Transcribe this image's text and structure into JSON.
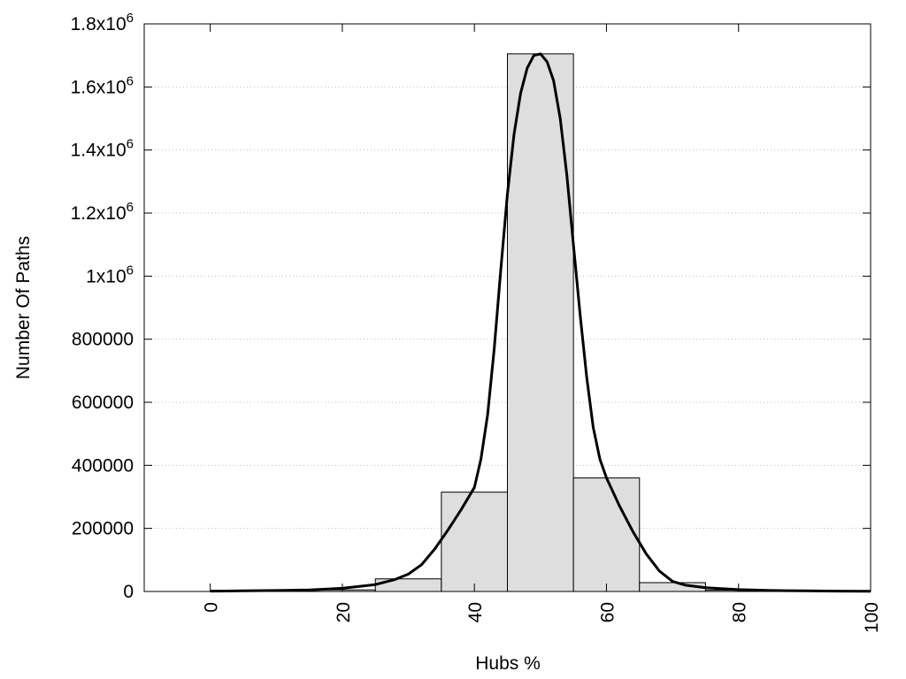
{
  "chart_data": {
    "type": "bar",
    "title": "",
    "xlabel": "Hubs %",
    "ylabel": "Number Of Paths",
    "xlim": [
      -10,
      100
    ],
    "ylim": [
      0,
      1800000
    ],
    "grid": true,
    "x_ticks": [
      0,
      20,
      40,
      60,
      80,
      100
    ],
    "y_ticks": [
      {
        "value": 0,
        "label": "0"
      },
      {
        "value": 200000,
        "label": "200000"
      },
      {
        "value": 400000,
        "label": "400000"
      },
      {
        "value": 600000,
        "label": "600000"
      },
      {
        "value": 800000,
        "label": "800000"
      },
      {
        "value": 1000000,
        "label": "1x10",
        "exp": "6"
      },
      {
        "value": 1200000,
        "label": "1.2x10",
        "exp": "6"
      },
      {
        "value": 1400000,
        "label": "1.4x10",
        "exp": "6"
      },
      {
        "value": 1600000,
        "label": "1.6x10",
        "exp": "6"
      },
      {
        "value": 1800000,
        "label": "1.8x10",
        "exp": "6"
      }
    ],
    "bars": [
      {
        "x0": 5,
        "x1": 15,
        "value": 2000
      },
      {
        "x0": 15,
        "x1": 25,
        "value": 5000
      },
      {
        "x0": 25,
        "x1": 35,
        "value": 40000
      },
      {
        "x0": 35,
        "x1": 45,
        "value": 315000
      },
      {
        "x0": 45,
        "x1": 55,
        "value": 1705000
      },
      {
        "x0": 55,
        "x1": 65,
        "value": 360000
      },
      {
        "x0": 65,
        "x1": 75,
        "value": 28000
      },
      {
        "x0": 75,
        "x1": 85,
        "value": 4000
      },
      {
        "x0": 85,
        "x1": 95,
        "value": 1000
      }
    ],
    "fit_curve": {
      "x": [
        0,
        5,
        10,
        15,
        20,
        25,
        28,
        30,
        32,
        34,
        36,
        38,
        40,
        41,
        42,
        43,
        44,
        45,
        46,
        47,
        48,
        49,
        50,
        51,
        52,
        53,
        54,
        55,
        56,
        57,
        58,
        59,
        60,
        62,
        64,
        66,
        68,
        70,
        72,
        75,
        80,
        85,
        90,
        95,
        100
      ],
      "y": [
        1000,
        2000,
        3000,
        5000,
        10000,
        22000,
        38000,
        55000,
        85000,
        135000,
        195000,
        260000,
        330000,
        420000,
        560000,
        770000,
        1020000,
        1260000,
        1450000,
        1580000,
        1660000,
        1700000,
        1705000,
        1680000,
        1620000,
        1500000,
        1320000,
        1100000,
        880000,
        680000,
        520000,
        420000,
        360000,
        270000,
        190000,
        120000,
        65000,
        32000,
        20000,
        12000,
        6000,
        3000,
        2000,
        1000,
        500
      ]
    }
  }
}
